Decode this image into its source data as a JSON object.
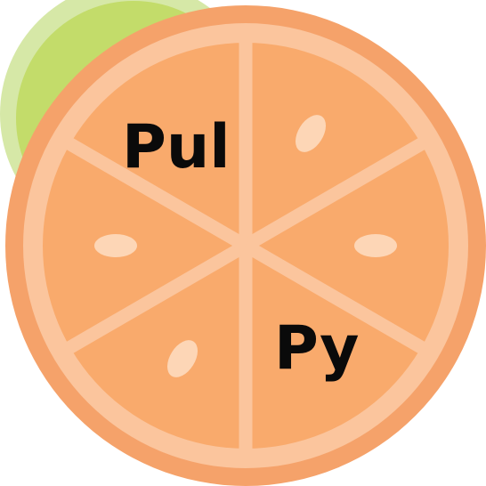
{
  "logo": {
    "word_top": "Pul",
    "word_bottom": "Py"
  },
  "colors": {
    "lime_outer": "#d6e8a7",
    "lime_inner": "#c3dc6a",
    "orange_rind": "#f5a26a",
    "orange_pith": "#fbc59d",
    "orange_segment": "#f9aa6c",
    "seed": "#fdd6b6",
    "text": "#0a0a0a"
  }
}
